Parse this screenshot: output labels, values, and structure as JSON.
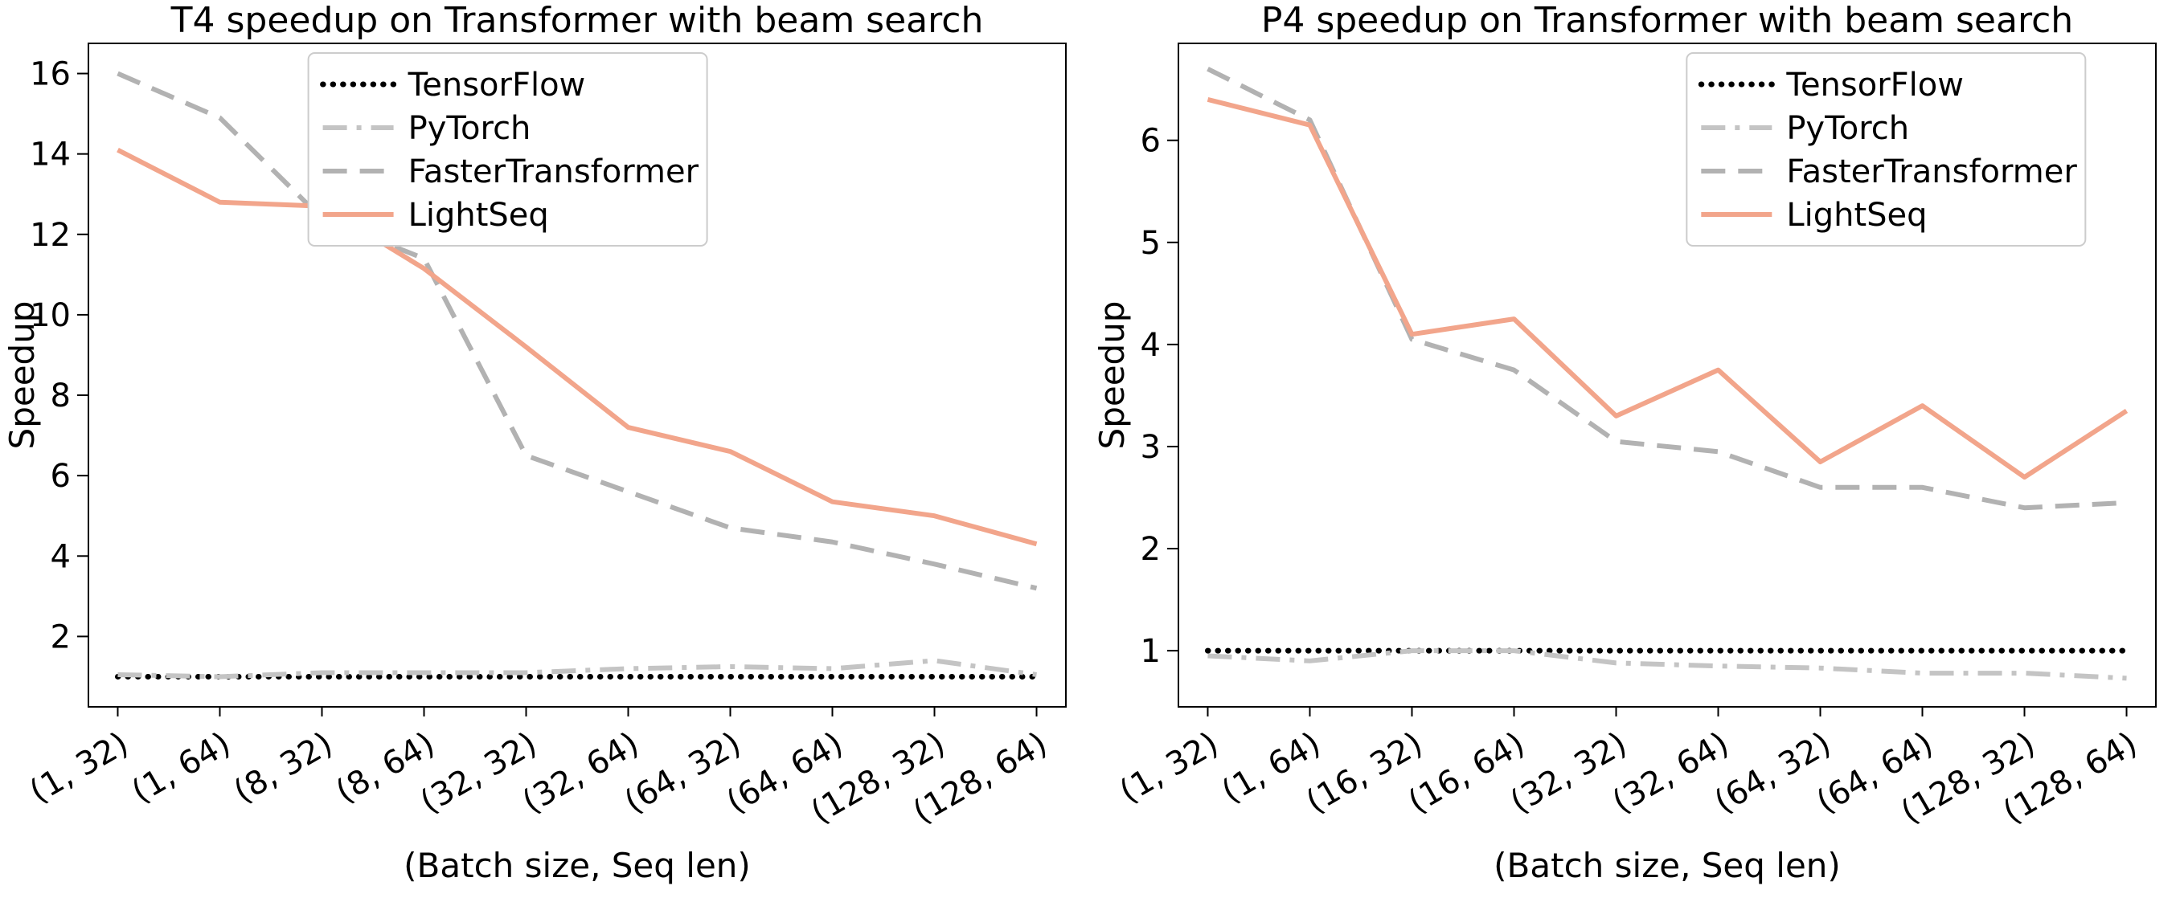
{
  "figure": {
    "background_color": "#ffffff"
  },
  "chart_data": [
    {
      "type": "line",
      "title": "T4 speedup on Transformer with beam search",
      "xlabel": "(Batch size, Seq len)",
      "ylabel": "Speedup",
      "categories": [
        "(1, 32)",
        "(1, 64)",
        "(8, 32)",
        "(8, 64)",
        "(32, 32)",
        "(32, 64)",
        "(64, 32)",
        "(64, 64)",
        "(128, 32)",
        "(128, 64)"
      ],
      "ylim": [
        0.25,
        16.75
      ],
      "yticks": [
        2,
        4,
        6,
        8,
        10,
        12,
        14,
        16
      ],
      "grid": false,
      "legend": {
        "position": "upper-center",
        "x_frac": 0.225
      },
      "series": [
        {
          "name": "TensorFlow",
          "style": "dotted",
          "color": "#000000",
          "width": 7,
          "values": [
            1.0,
            1.0,
            1.0,
            1.0,
            1.0,
            1.0,
            1.0,
            1.0,
            1.0,
            1.0
          ]
        },
        {
          "name": "PyTorch",
          "style": "dashdot",
          "color": "#c4c4c4",
          "width": 6,
          "values": [
            1.05,
            1.0,
            1.1,
            1.1,
            1.1,
            1.2,
            1.25,
            1.2,
            1.4,
            1.05
          ]
        },
        {
          "name": "FasterTransformer",
          "style": "dashed",
          "color": "#b2b2b2",
          "width": 6,
          "values": [
            16.0,
            14.9,
            12.4,
            11.4,
            6.5,
            5.6,
            4.7,
            4.35,
            3.8,
            3.2
          ]
        },
        {
          "name": "LightSeq",
          "style": "solid",
          "color": "#f2a58b",
          "width": 6,
          "values": [
            14.1,
            12.8,
            12.7,
            11.15,
            9.2,
            7.2,
            6.6,
            5.35,
            5.0,
            4.3
          ]
        }
      ]
    },
    {
      "type": "line",
      "title": "P4 speedup on Transformer with beam search",
      "xlabel": "(Batch size, Seq len)",
      "ylabel": "Speedup",
      "categories": [
        "(1, 32)",
        "(1, 64)",
        "(16, 32)",
        "(16, 64)",
        "(32, 32)",
        "(32, 64)",
        "(64, 32)",
        "(64, 64)",
        "(128, 32)",
        "(128, 64)"
      ],
      "ylim": [
        0.45,
        6.95
      ],
      "yticks": [
        1,
        2,
        3,
        4,
        5,
        6
      ],
      "grid": false,
      "legend": {
        "position": "upper-right",
        "x_frac": 0.52
      },
      "series": [
        {
          "name": "TensorFlow",
          "style": "dotted",
          "color": "#000000",
          "width": 7,
          "values": [
            1.0,
            1.0,
            1.0,
            1.0,
            1.0,
            1.0,
            1.0,
            1.0,
            1.0,
            1.0
          ]
        },
        {
          "name": "PyTorch",
          "style": "dashdot",
          "color": "#c4c4c4",
          "width": 6,
          "values": [
            0.95,
            0.9,
            1.0,
            1.0,
            0.88,
            0.85,
            0.83,
            0.78,
            0.78,
            0.73
          ]
        },
        {
          "name": "FasterTransformer",
          "style": "dashed",
          "color": "#b2b2b2",
          "width": 6,
          "values": [
            6.7,
            6.2,
            4.05,
            3.75,
            3.05,
            2.95,
            2.6,
            2.6,
            2.4,
            2.45
          ]
        },
        {
          "name": "LightSeq",
          "style": "solid",
          "color": "#f2a58b",
          "width": 6,
          "values": [
            6.4,
            6.15,
            4.1,
            4.25,
            3.3,
            3.75,
            2.85,
            3.4,
            2.7,
            3.35
          ]
        }
      ]
    }
  ]
}
